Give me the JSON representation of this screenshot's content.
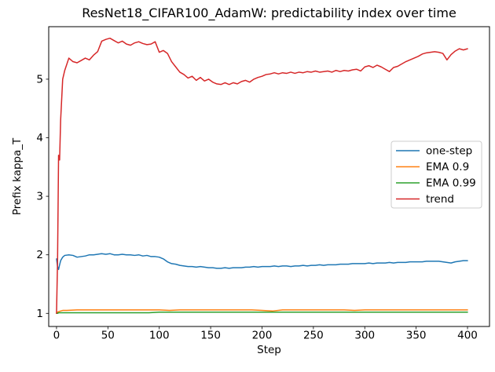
{
  "figure": {
    "title": "ResNet18_CIFAR100_AdamW: predictability index over time"
  },
  "chart_data": {
    "type": "line",
    "title": "ResNet18_CIFAR100_AdamW: predictability index over time",
    "xlabel": "Step",
    "ylabel": "Prefix kappa_T",
    "x_ticks": [
      0,
      50,
      100,
      150,
      200,
      250,
      300,
      350,
      400
    ],
    "y_ticks": [
      1,
      2,
      3,
      4,
      5
    ],
    "xlim": [
      -7.6,
      421.4
    ],
    "ylim": [
      0.776,
      5.897
    ],
    "grid": false,
    "legend": {
      "position": "center right",
      "entries": [
        "one-step",
        "EMA 0.9",
        "EMA 0.99",
        "trend"
      ],
      "border_color": "#cccccc",
      "background": "#ffffff"
    },
    "colors": {
      "spine": "#000000",
      "text": "#000000"
    },
    "series": [
      {
        "name": "one-step",
        "color": "#1f77b4",
        "x": [
          0,
          1,
          2,
          3,
          4,
          6,
          8,
          12,
          16,
          20,
          24,
          28,
          32,
          36,
          40,
          44,
          48,
          52,
          56,
          60,
          64,
          68,
          72,
          76,
          80,
          84,
          88,
          92,
          96,
          100,
          104,
          108,
          112,
          116,
          120,
          124,
          128,
          132,
          136,
          140,
          144,
          148,
          152,
          156,
          160,
          164,
          168,
          172,
          176,
          180,
          184,
          188,
          192,
          196,
          200,
          204,
          208,
          212,
          216,
          220,
          224,
          228,
          232,
          236,
          240,
          244,
          248,
          252,
          256,
          260,
          264,
          268,
          272,
          276,
          280,
          284,
          288,
          292,
          296,
          300,
          304,
          308,
          312,
          316,
          320,
          324,
          328,
          332,
          336,
          340,
          344,
          348,
          352,
          356,
          360,
          364,
          368,
          372,
          376,
          380,
          384,
          388,
          392,
          396,
          400
        ],
        "y": [
          1.93,
          1.8,
          1.75,
          1.83,
          1.9,
          1.96,
          1.99,
          2.0,
          1.99,
          1.96,
          1.97,
          1.98,
          2.0,
          2.0,
          2.01,
          2.02,
          2.01,
          2.02,
          2.0,
          2.0,
          2.01,
          2.0,
          2.0,
          1.99,
          2.0,
          1.98,
          1.99,
          1.97,
          1.97,
          1.96,
          1.93,
          1.88,
          1.85,
          1.84,
          1.82,
          1.81,
          1.8,
          1.8,
          1.79,
          1.8,
          1.79,
          1.78,
          1.78,
          1.77,
          1.77,
          1.78,
          1.77,
          1.78,
          1.78,
          1.78,
          1.79,
          1.79,
          1.8,
          1.79,
          1.8,
          1.8,
          1.8,
          1.81,
          1.8,
          1.81,
          1.81,
          1.8,
          1.81,
          1.81,
          1.82,
          1.81,
          1.82,
          1.82,
          1.83,
          1.82,
          1.83,
          1.83,
          1.83,
          1.84,
          1.84,
          1.84,
          1.85,
          1.85,
          1.85,
          1.85,
          1.86,
          1.85,
          1.86,
          1.86,
          1.86,
          1.87,
          1.86,
          1.87,
          1.87,
          1.87,
          1.88,
          1.88,
          1.88,
          1.88,
          1.89,
          1.89,
          1.89,
          1.89,
          1.88,
          1.87,
          1.86,
          1.88,
          1.89,
          1.9,
          1.9
        ]
      },
      {
        "name": "EMA 0.9",
        "color": "#ff7f0e",
        "x": [
          0,
          1,
          2,
          4,
          6,
          8,
          10,
          20,
          30,
          40,
          50,
          60,
          70,
          80,
          90,
          100,
          110,
          120,
          130,
          140,
          150,
          160,
          170,
          180,
          190,
          200,
          210,
          220,
          230,
          240,
          250,
          260,
          270,
          280,
          290,
          300,
          310,
          320,
          330,
          340,
          350,
          360,
          370,
          380,
          390,
          400
        ],
        "y": [
          1.0,
          1.02,
          1.03,
          1.04,
          1.05,
          1.05,
          1.05,
          1.06,
          1.06,
          1.06,
          1.06,
          1.06,
          1.06,
          1.06,
          1.06,
          1.06,
          1.05,
          1.06,
          1.06,
          1.06,
          1.06,
          1.06,
          1.06,
          1.06,
          1.06,
          1.05,
          1.04,
          1.06,
          1.06,
          1.06,
          1.06,
          1.06,
          1.06,
          1.06,
          1.05,
          1.06,
          1.06,
          1.06,
          1.06,
          1.06,
          1.06,
          1.06,
          1.06,
          1.06,
          1.06,
          1.06
        ]
      },
      {
        "name": "EMA 0.99",
        "color": "#2ca02c",
        "x": [
          0,
          1,
          2,
          4,
          6,
          8,
          10,
          20,
          30,
          40,
          50,
          60,
          70,
          80,
          90,
          100,
          110,
          120,
          130,
          140,
          150,
          160,
          170,
          180,
          190,
          200,
          210,
          220,
          230,
          240,
          250,
          260,
          270,
          280,
          290,
          300,
          310,
          320,
          330,
          340,
          350,
          360,
          370,
          380,
          390,
          400
        ],
        "y": [
          1.0,
          1.0,
          1.01,
          1.01,
          1.01,
          1.01,
          1.01,
          1.01,
          1.01,
          1.01,
          1.01,
          1.01,
          1.01,
          1.01,
          1.01,
          1.02,
          1.02,
          1.02,
          1.02,
          1.02,
          1.02,
          1.02,
          1.02,
          1.02,
          1.02,
          1.02,
          1.02,
          1.02,
          1.02,
          1.02,
          1.02,
          1.02,
          1.02,
          1.02,
          1.02,
          1.02,
          1.02,
          1.02,
          1.02,
          1.02,
          1.02,
          1.02,
          1.02,
          1.02,
          1.02,
          1.02
        ]
      },
      {
        "name": "trend",
        "color": "#d62728",
        "x": [
          0,
          1,
          2,
          3,
          4,
          6,
          8,
          12,
          16,
          20,
          24,
          28,
          32,
          36,
          40,
          44,
          48,
          52,
          56,
          60,
          64,
          68,
          72,
          76,
          80,
          84,
          88,
          92,
          96,
          100,
          104,
          108,
          112,
          116,
          120,
          124,
          128,
          132,
          136,
          140,
          144,
          148,
          152,
          156,
          160,
          164,
          168,
          172,
          176,
          180,
          184,
          188,
          192,
          196,
          200,
          204,
          208,
          212,
          216,
          220,
          224,
          228,
          232,
          236,
          240,
          244,
          248,
          252,
          256,
          260,
          264,
          268,
          272,
          276,
          280,
          284,
          288,
          292,
          296,
          300,
          304,
          308,
          312,
          316,
          320,
          324,
          328,
          332,
          336,
          340,
          344,
          348,
          352,
          356,
          360,
          364,
          368,
          372,
          376,
          380,
          384,
          388,
          392,
          396,
          400
        ],
        "y": [
          1.0,
          1.9,
          3.7,
          3.62,
          4.3,
          5.0,
          5.15,
          5.36,
          5.3,
          5.28,
          5.32,
          5.36,
          5.33,
          5.41,
          5.47,
          5.65,
          5.68,
          5.7,
          5.66,
          5.62,
          5.65,
          5.6,
          5.58,
          5.62,
          5.64,
          5.61,
          5.59,
          5.6,
          5.64,
          5.46,
          5.49,
          5.44,
          5.3,
          5.21,
          5.12,
          5.08,
          5.02,
          5.05,
          4.98,
          5.03,
          4.97,
          5.0,
          4.95,
          4.92,
          4.91,
          4.94,
          4.91,
          4.94,
          4.92,
          4.96,
          4.98,
          4.95,
          5.0,
          5.03,
          5.05,
          5.08,
          5.09,
          5.11,
          5.09,
          5.11,
          5.1,
          5.12,
          5.1,
          5.12,
          5.11,
          5.13,
          5.12,
          5.14,
          5.12,
          5.13,
          5.14,
          5.12,
          5.15,
          5.13,
          5.15,
          5.14,
          5.16,
          5.17,
          5.14,
          5.21,
          5.23,
          5.2,
          5.24,
          5.21,
          5.17,
          5.13,
          5.2,
          5.22,
          5.26,
          5.3,
          5.33,
          5.36,
          5.39,
          5.43,
          5.45,
          5.46,
          5.47,
          5.46,
          5.44,
          5.33,
          5.42,
          5.48,
          5.52,
          5.5,
          5.52
        ]
      }
    ]
  }
}
